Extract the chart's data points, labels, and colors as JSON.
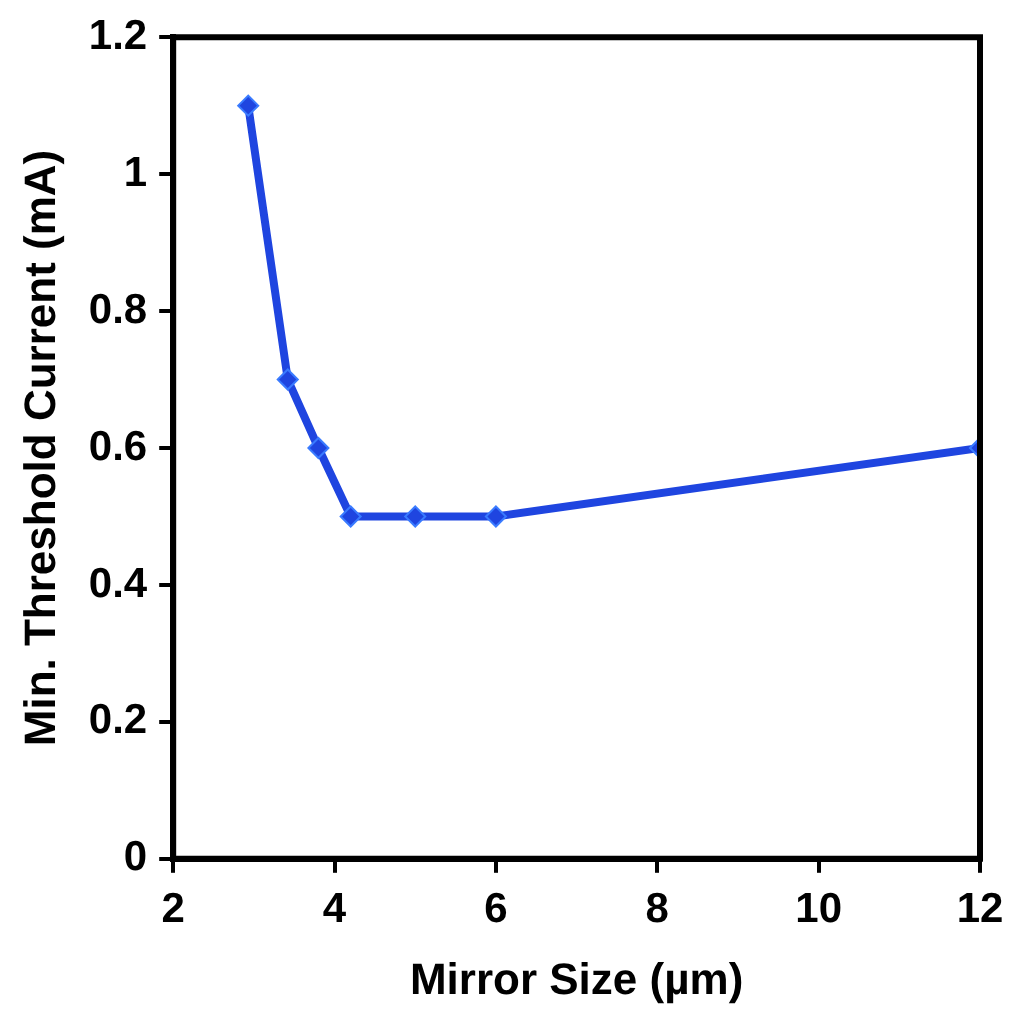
{
  "chart_data": {
    "type": "line",
    "xlabel": "Mirror Size (µm)",
    "ylabel": "Min. Threshold Current (mA)",
    "x": [
      2.93,
      3.42,
      3.8,
      4.2,
      5,
      6,
      12
    ],
    "series": [
      {
        "color": "#1f45e0",
        "values": [
          1.1,
          0.7,
          0.6,
          0.5,
          0.5,
          0.5,
          0.6
        ]
      }
    ],
    "xlim": [
      2,
      12
    ],
    "xticks": [
      2,
      4,
      6,
      8,
      10,
      12
    ],
    "ylim": [
      0,
      1.2
    ],
    "yticks": [
      0,
      0.2,
      0.4,
      0.6,
      0.8,
      1,
      1.2
    ],
    "grid": false,
    "legend": false,
    "marker": "diamond",
    "line_style": "solid"
  }
}
